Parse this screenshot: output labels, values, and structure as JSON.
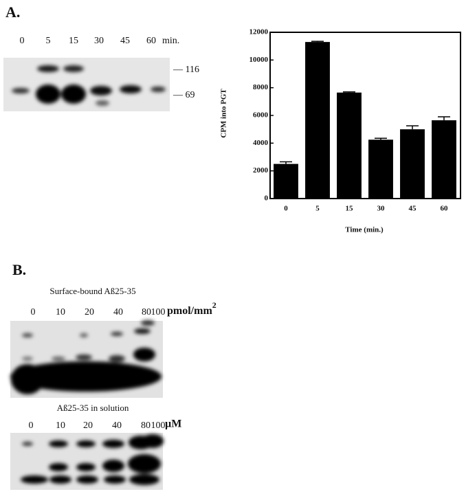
{
  "panel_labels": [
    "A.",
    "B."
  ],
  "blot_a": {
    "lanes": [
      "0",
      "5",
      "15",
      "30",
      "45",
      "60"
    ],
    "unit": "min.",
    "markers": [
      "116",
      "69"
    ]
  },
  "chart_data": {
    "type": "bar",
    "ylabel": "CPM into PGT",
    "xlabel": "Time  (min.)",
    "categories": [
      "0",
      "5",
      "15",
      "30",
      "45",
      "60"
    ],
    "values": [
      2500,
      11300,
      7650,
      4250,
      5000,
      5650
    ],
    "errors": [
      150,
      50,
      50,
      100,
      250,
      250
    ],
    "color": "#000000",
    "ylim": [
      0,
      12000
    ],
    "yticks": [
      0,
      2000,
      4000,
      6000,
      8000,
      10000,
      12000
    ],
    "grid": false
  },
  "blot_b1": {
    "title": "Surface-bound Aß25-35",
    "lanes": [
      "0",
      "10",
      "20",
      "40",
      "80",
      "100"
    ],
    "unit": "pmol/mm",
    "unit_sup": "2"
  },
  "blot_b2": {
    "title": "Aß25-35 in solution",
    "lanes": [
      "0",
      "10",
      "20",
      "40",
      "80",
      "100"
    ],
    "unit": "µM"
  }
}
